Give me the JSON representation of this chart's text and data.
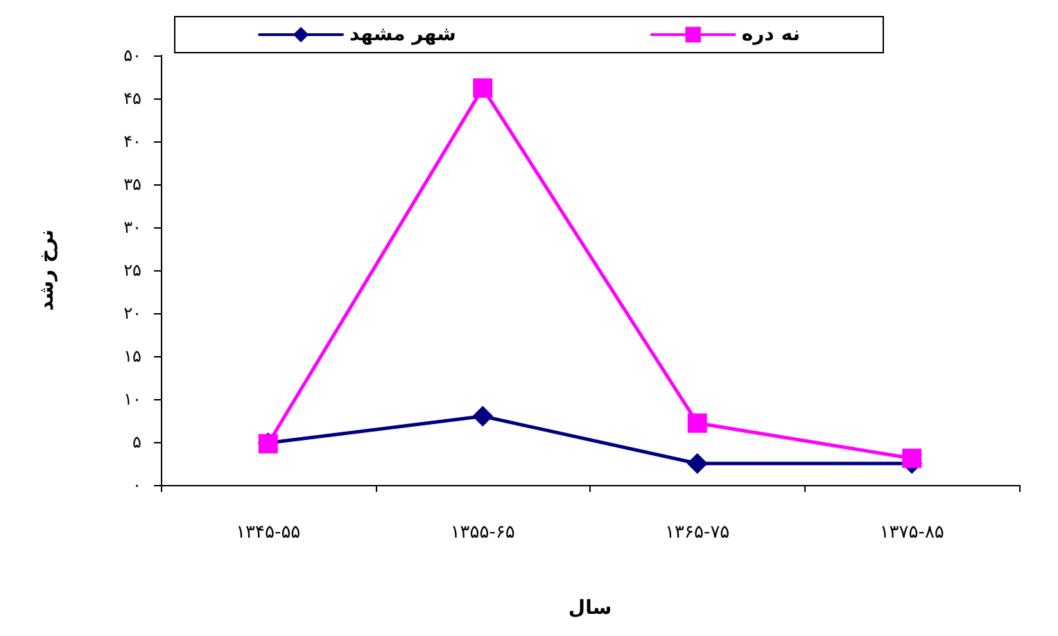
{
  "chart_data": {
    "type": "line",
    "xlabel": "سال",
    "ylabel": "نرخ رشد",
    "categories": [
      "۱۳۴۵-۵۵",
      "۱۳۵۵-۶۵",
      "۱۳۶۵-۷۵",
      "۱۳۷۵-۸۵"
    ],
    "series": [
      {
        "name": "شهر مشهد",
        "color": "#000080",
        "marker": "diamond",
        "values": [
          4.9,
          8,
          2.5,
          2.5
        ]
      },
      {
        "name": "نه دره",
        "color": "#ff00ff",
        "marker": "square",
        "values": [
          4.8,
          46.2,
          7.2,
          3.1
        ]
      }
    ],
    "ylim": [
      0,
      50
    ],
    "yticks": [
      {
        "value": 0,
        "label": "۰"
      },
      {
        "value": 5,
        "label": "۵"
      },
      {
        "value": 10,
        "label": "۱۰"
      },
      {
        "value": 15,
        "label": "۱۵"
      },
      {
        "value": 20,
        "label": "۲۰"
      },
      {
        "value": 25,
        "label": "۲۵"
      },
      {
        "value": 30,
        "label": "۳۰"
      },
      {
        "value": 35,
        "label": "۳۵"
      },
      {
        "value": 40,
        "label": "۴۰"
      },
      {
        "value": 45,
        "label": "۴۵"
      },
      {
        "value": 50,
        "label": "۵۰"
      }
    ],
    "grid": false,
    "legend": "top",
    "line_style": "solid"
  }
}
